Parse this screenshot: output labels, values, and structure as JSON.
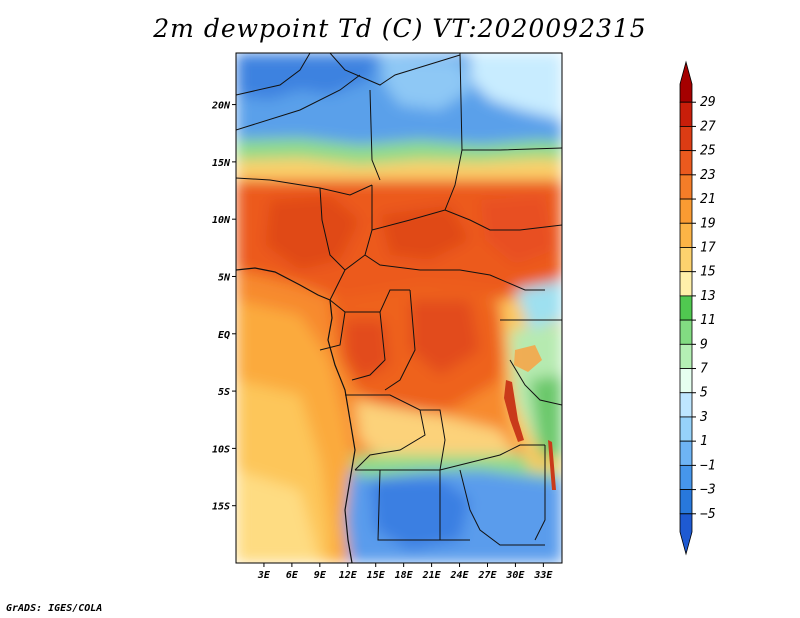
{
  "title": "2m dewpoint Td (C) VT:2020092315",
  "footer": "GrADS: IGES/COLA",
  "map": {
    "region": "Central Africa",
    "variable": "2m dewpoint temperature",
    "units": "C",
    "valid_time": "2020092315",
    "lon_range": [
      0,
      35
    ],
    "lat_range": [
      -20,
      24.5
    ],
    "lat_labels": [
      "20N",
      "15N",
      "10N",
      "5N",
      "EQ",
      "5S",
      "10S",
      "15S"
    ],
    "lat_values": [
      20,
      15,
      10,
      5,
      0,
      -5,
      -10,
      -15
    ],
    "lon_labels": [
      "3E",
      "6E",
      "9E",
      "12E",
      "15E",
      "18E",
      "21E",
      "24E",
      "27E",
      "30E",
      "33E"
    ],
    "lon_values": [
      3,
      6,
      9,
      12,
      15,
      18,
      21,
      24,
      27,
      30,
      33
    ]
  },
  "colorbar": {
    "labels": [
      "29",
      "27",
      "25",
      "23",
      "21",
      "19",
      "17",
      "15",
      "13",
      "11",
      "9",
      "7",
      "5",
      "3",
      "1",
      "−1",
      "−3",
      "−5"
    ],
    "colors": [
      "#a50000",
      "#c81e0a",
      "#dc3c14",
      "#eb5a1e",
      "#f57d28",
      "#fa9b32",
      "#fcb446",
      "#fdd26e",
      "#fff0aa",
      "#50c850",
      "#82dc82",
      "#b4f0b4",
      "#e6fff0",
      "#bee6ff",
      "#96d2fa",
      "#6eb4f5",
      "#4696eb",
      "#2878dc",
      "#1e5ad2"
    ]
  }
}
